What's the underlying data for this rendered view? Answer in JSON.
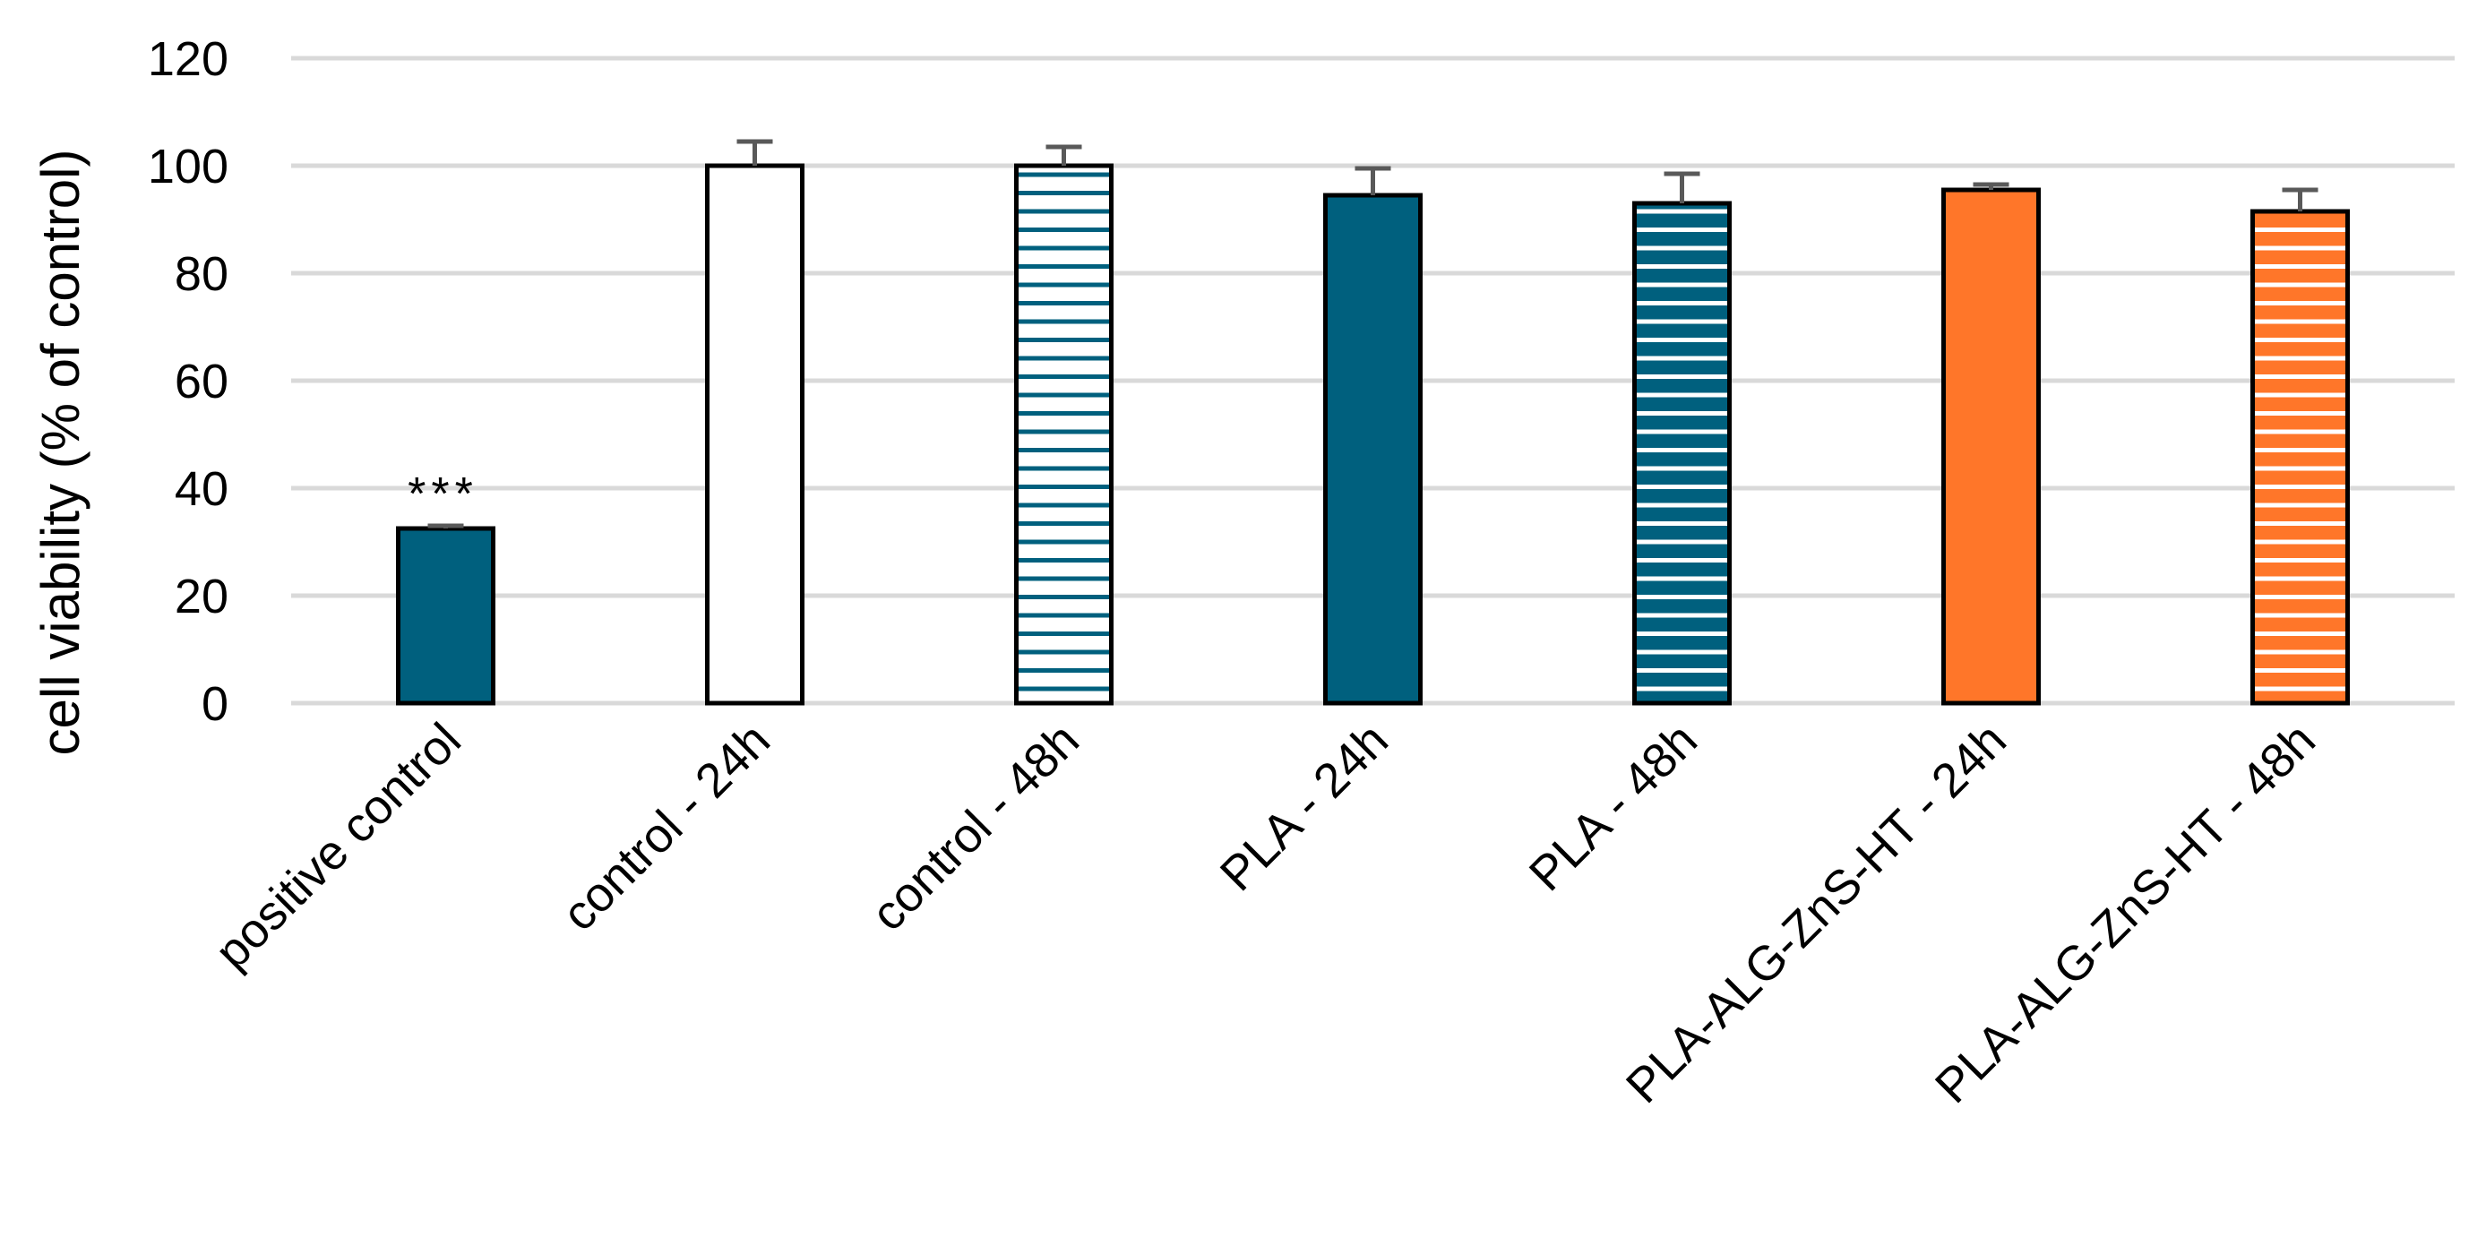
{
  "chart_data": {
    "type": "bar",
    "title": "",
    "xlabel": "",
    "ylabel": "cell viability (% of control)",
    "ylim": [
      0,
      120
    ],
    "yticks": [
      0,
      20,
      40,
      60,
      80,
      100,
      120
    ],
    "grid": true,
    "legend": "none",
    "categories": [
      "positive control",
      "control - 24h",
      "control - 48h",
      "PLA - 24h",
      "PLA - 48h",
      "PLA-ALG-ZnS-HT - 24h",
      "PLA-ALG-ZnS-HT - 48h"
    ],
    "values": [
      32.5,
      100,
      100,
      94.5,
      93,
      95.5,
      91.5
    ],
    "errors": [
      0.5,
      4.5,
      3.5,
      5,
      5.5,
      1,
      4
    ],
    "bar_styles": [
      {
        "fill": "#00607e",
        "pattern": "solid"
      },
      {
        "fill": "#ffffff",
        "pattern": "solid"
      },
      {
        "fill": "#ffffff",
        "pattern": "stripes",
        "stripe": "#00607e"
      },
      {
        "fill": "#00607e",
        "pattern": "solid"
      },
      {
        "fill": "#00607e",
        "pattern": "stripes",
        "stripe": "#ffffff"
      },
      {
        "fill": "#ff7629",
        "pattern": "solid"
      },
      {
        "fill": "#ff7629",
        "pattern": "stripes",
        "stripe": "#ffffff"
      }
    ],
    "annotations": [
      {
        "category": "positive control",
        "text": "***"
      }
    ],
    "colors": {
      "grid": "#d9d9d9",
      "bar_edge": "#000000",
      "error_bar": "#595959"
    }
  }
}
